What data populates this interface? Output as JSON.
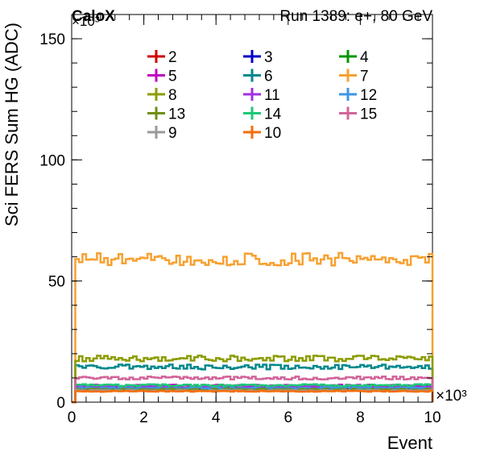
{
  "header": {
    "experiment": "CaloX",
    "run_info": "Run 1389: e+, 80 GeV"
  },
  "chart_data": {
    "type": "line",
    "title": "",
    "xlabel": "Event",
    "ylabel": "Sci FERS Sum HG (ADC)",
    "x_exponent": "×10³",
    "y_exponent": "×10³",
    "xlim": [
      0,
      10
    ],
    "ylim": [
      0,
      160
    ],
    "x_ticks": [
      0,
      2,
      4,
      6,
      8,
      10
    ],
    "y_ticks": [
      0,
      50,
      100,
      150
    ],
    "grid": false,
    "legend_position": "top",
    "x_range_filled": [
      0.1,
      10
    ],
    "bin_width": 0.1,
    "series": [
      {
        "name": "2",
        "color": "#d00000",
        "mean": 5.5,
        "amp": 0.3
      },
      {
        "name": "3",
        "color": "#0000c8",
        "mean": 5.0,
        "amp": 0.3
      },
      {
        "name": "4",
        "color": "#009600",
        "mean": 6.0,
        "amp": 0.3
      },
      {
        "name": "5",
        "color": "#c000c0",
        "mean": 6.8,
        "amp": 0.4
      },
      {
        "name": "6",
        "color": "#00888c",
        "mean": 14.5,
        "amp": 1.0
      },
      {
        "name": "7",
        "color": "#f7a131",
        "mean": 59.0,
        "amp": 2.6
      },
      {
        "name": "8",
        "color": "#8c9c00",
        "mean": 18.0,
        "amp": 1.2
      },
      {
        "name": "11",
        "color": "#a030e6",
        "mean": 6.4,
        "amp": 0.3
      },
      {
        "name": "12",
        "color": "#3c96e6",
        "mean": 5.8,
        "amp": 0.3
      },
      {
        "name": "13",
        "color": "#6f8f12",
        "mean": 5.2,
        "amp": 0.3
      },
      {
        "name": "14",
        "color": "#1ec878",
        "mean": 7.0,
        "amp": 0.4
      },
      {
        "name": "15",
        "color": "#d2649a",
        "mean": 10.0,
        "amp": 0.6
      },
      {
        "name": "9",
        "color": "#9a9a9a",
        "mean": 4.8,
        "amp": 0.2
      },
      {
        "name": "10",
        "color": "#f56e08",
        "mean": 4.5,
        "amp": 0.2
      }
    ]
  }
}
